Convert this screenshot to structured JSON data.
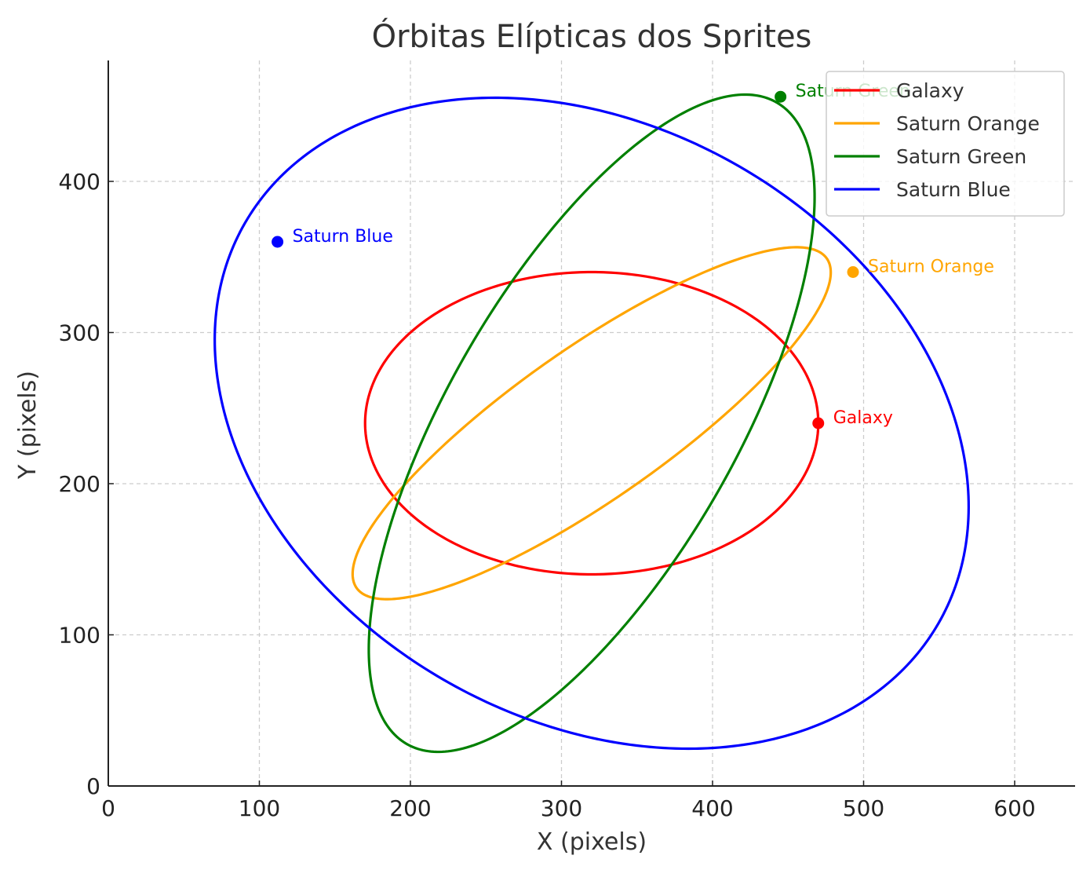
{
  "chart_data": {
    "type": "line",
    "title": "Órbitas Elípticas dos Sprites",
    "xlabel": "X (pixels)",
    "ylabel": "Y (pixels)",
    "xlim": [
      0,
      640
    ],
    "ylim": [
      0,
      480
    ],
    "xticks": [
      0,
      100,
      200,
      300,
      400,
      500,
      600
    ],
    "yticks": [
      0,
      100,
      200,
      300,
      400
    ],
    "xtick_labels": [
      "0",
      "100",
      "200",
      "300",
      "400",
      "500",
      "600"
    ],
    "ytick_labels": [
      "0",
      "100",
      "200",
      "300",
      "400"
    ],
    "grid": true,
    "legend_position": "top-right",
    "series": [
      {
        "name": "Galaxy",
        "color": "#ff0000",
        "orbit": {
          "center": [
            320,
            240
          ],
          "a": 150,
          "b": 100,
          "angle_deg": 0
        },
        "marker": [
          470,
          240
        ],
        "marker_label": "Galaxy"
      },
      {
        "name": "Saturn Orange",
        "color": "#ffa500",
        "orbit": {
          "center": [
            320,
            240
          ],
          "a": 190,
          "b": 50,
          "angle_deg": 35
        },
        "marker": [
          493,
          340
        ],
        "marker_label": "Saturn Orange"
      },
      {
        "name": "Saturn Green",
        "color": "#008000",
        "orbit": {
          "center": [
            320,
            240
          ],
          "a": 245,
          "b": 95,
          "angle_deg": 60
        },
        "marker": [
          445,
          456
        ],
        "marker_label": "Saturn Green"
      },
      {
        "name": "Saturn Blue",
        "color": "#0000ff",
        "orbit": {
          "center": [
            320,
            240
          ],
          "a": 265,
          "b": 196,
          "angle_deg": -30
        },
        "marker": [
          112,
          360
        ],
        "marker_label": "Saturn Blue"
      }
    ]
  }
}
